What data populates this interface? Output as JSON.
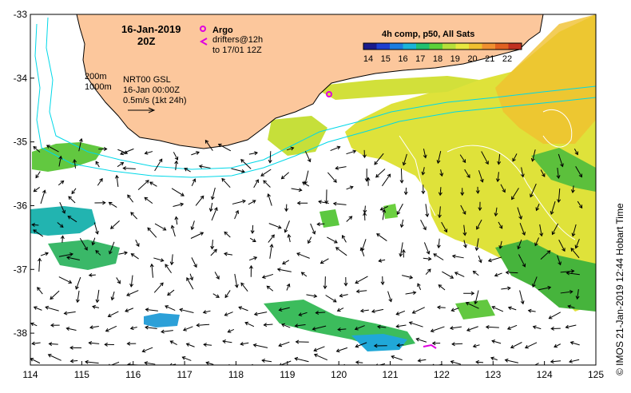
{
  "header": {
    "date": "16-Jan-2019",
    "time": "20Z"
  },
  "legend": {
    "argo_label": "Argo",
    "drifters_line1": "drifters@12h",
    "drifters_line2": "to 17/01 12Z",
    "argo_color": "#e000e0",
    "drifter_color": "#e000e0"
  },
  "colorbar": {
    "title": "4h comp, p50, All Sats",
    "ticks": [
      "14",
      "15",
      "16",
      "17",
      "18",
      "19",
      "20",
      "21",
      "22"
    ],
    "colors": [
      "#1b1b8c",
      "#1e3fd0",
      "#1a7de0",
      "#1ab4d8",
      "#22c070",
      "#5cd23a",
      "#b6e03a",
      "#e8e840",
      "#f0c030",
      "#f09030",
      "#e06020",
      "#c03020"
    ]
  },
  "annotation": {
    "isobath_200": "200m",
    "isobath_1000": "1000m",
    "model": "NRT00 GSL",
    "model_time": "16-Jan 00:00Z",
    "scale": "0.5m/s (1kt 24h)"
  },
  "axes": {
    "x_ticks": [
      "114",
      "115",
      "116",
      "117",
      "118",
      "119",
      "120",
      "121",
      "122",
      "123",
      "124",
      "125"
    ],
    "y_ticks": [
      "-33",
      "-34",
      "-35",
      "-36",
      "-37",
      "-38"
    ],
    "xlim": [
      114,
      125
    ],
    "ylim": [
      -38.5,
      -33
    ]
  },
  "credit": "© IMOS 21-Jan-2019 12:44 Hobart Time",
  "colors": {
    "land": "#fcc79c",
    "coast": "#000000",
    "isobath": "#00d8e8",
    "contour": "#ffffff"
  }
}
